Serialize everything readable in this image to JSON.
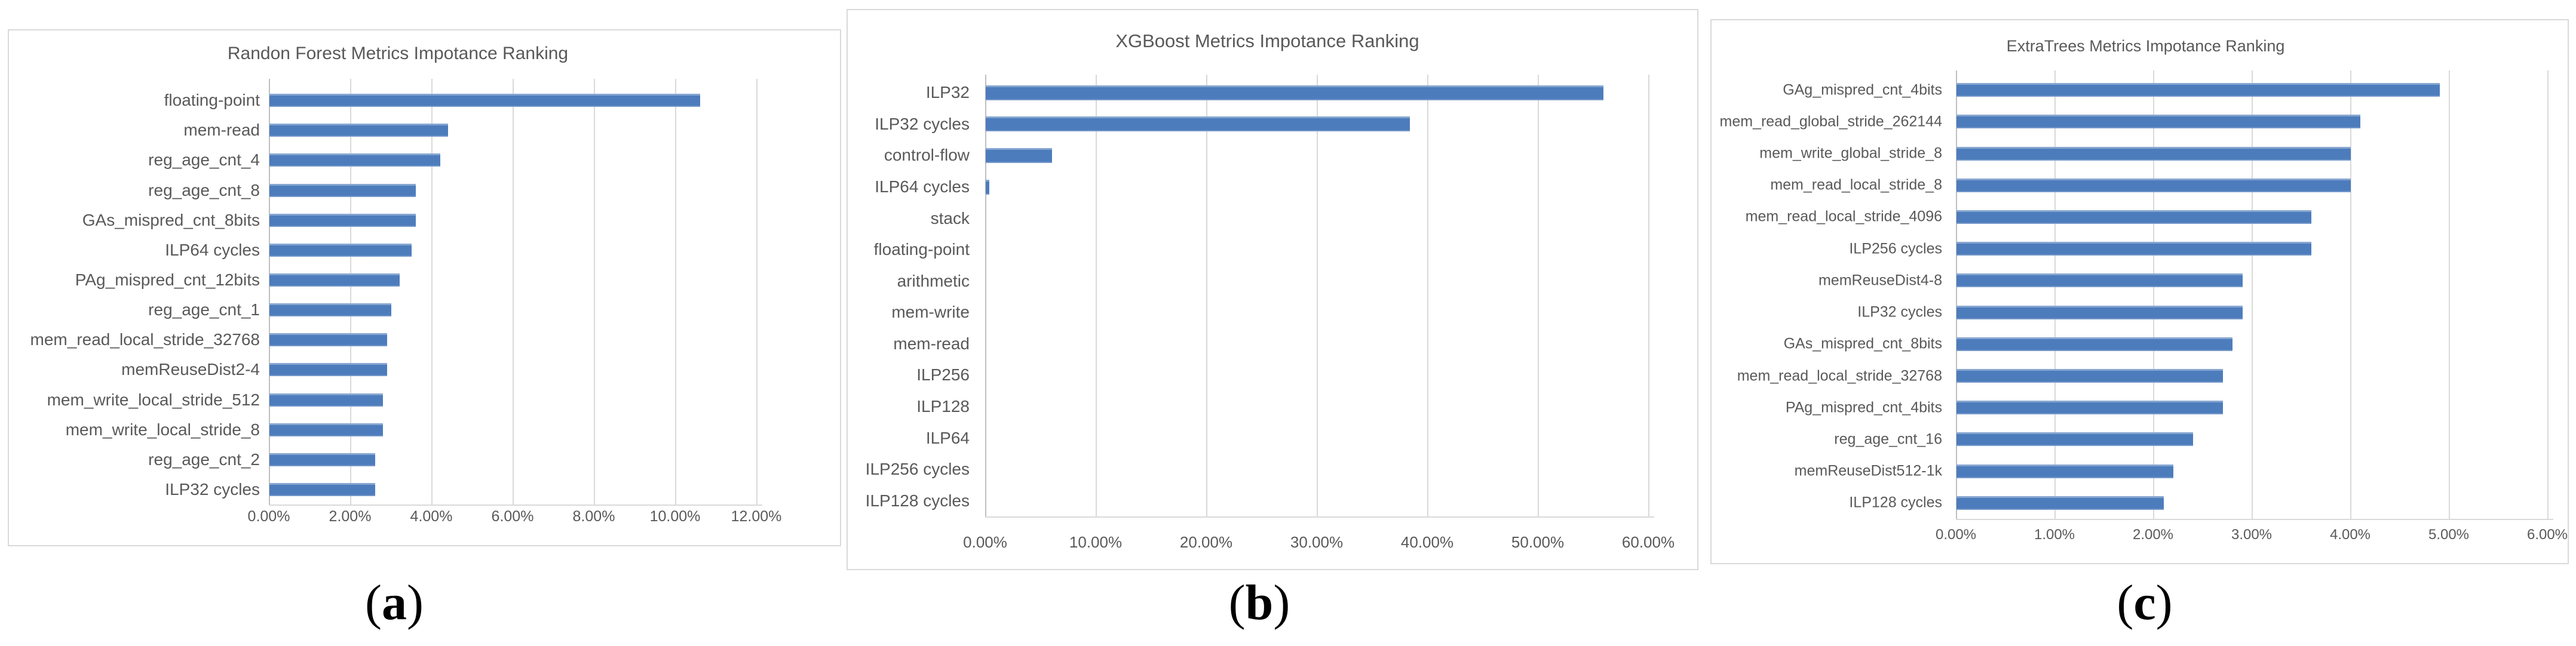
{
  "figure": {
    "captions": [
      {
        "open": "(",
        "letter": "a",
        "close": ")"
      },
      {
        "open": "(",
        "letter": "b",
        "close": ")"
      },
      {
        "open": "(",
        "letter": "c",
        "close": ")"
      }
    ],
    "colors": {
      "bar": "#4d7cbc",
      "gridline": "#d9d9d9",
      "zero_axis": "#bfbfbf",
      "text": "#595959",
      "panel_border": "#d9d9d9",
      "caption": "#000000"
    }
  },
  "chart_data": [
    {
      "type": "bar",
      "orientation": "horizontal",
      "title": "Randon Forest Metrics Impotance Ranking",
      "unit": "%",
      "xlim": [
        0,
        12
      ],
      "xtick_step": 2,
      "xtick_labels": [
        "0.00%",
        "2.00%",
        "4.00%",
        "6.00%",
        "8.00%",
        "10.00%",
        "12.00%"
      ],
      "grid": true,
      "legend": "none",
      "categories": [
        "floating-point",
        "mem-read",
        "reg_age_cnt_4",
        "reg_age_cnt_8",
        "GAs_mispred_cnt_8bits",
        "ILP64 cycles",
        "PAg_mispred_cnt_12bits",
        "reg_age_cnt_1",
        "mem_read_local_stride_32768",
        "memReuseDist2-4",
        "mem_write_local_stride_512",
        "mem_write_local_stride_8",
        "reg_age_cnt_2",
        "ILP32 cycles"
      ],
      "values": [
        10.6,
        4.4,
        4.2,
        3.6,
        3.6,
        3.5,
        3.2,
        3.0,
        2.9,
        2.9,
        2.8,
        2.8,
        2.6,
        2.6
      ]
    },
    {
      "type": "bar",
      "orientation": "horizontal",
      "title": "XGBoost Metrics Impotance Ranking",
      "unit": "%",
      "xlim": [
        0,
        60
      ],
      "xtick_step": 10,
      "xtick_labels": [
        "0.00%",
        "10.00%",
        "20.00%",
        "30.00%",
        "40.00%",
        "50.00%",
        "60.00%"
      ],
      "grid": true,
      "legend": "none",
      "categories": [
        "ILP32",
        "ILP32 cycles",
        "control-flow",
        "ILP64 cycles",
        "stack",
        "floating-point",
        "arithmetic",
        "mem-write",
        "mem-read",
        "ILP256",
        "ILP128",
        "ILP64",
        "ILP256 cycles",
        "ILP128 cycles"
      ],
      "values": [
        55.9,
        38.4,
        6.0,
        0.3,
        0,
        0,
        0,
        0,
        0,
        0,
        0,
        0,
        0,
        0
      ]
    },
    {
      "type": "bar",
      "orientation": "horizontal",
      "title": "ExtraTrees Metrics Impotance Ranking",
      "unit": "%",
      "xlim": [
        0,
        6
      ],
      "xtick_step": 1,
      "xtick_labels": [
        "0.00%",
        "1.00%",
        "2.00%",
        "3.00%",
        "4.00%",
        "5.00%",
        "6.00%"
      ],
      "grid": true,
      "legend": "none",
      "categories": [
        "GAg_mispred_cnt_4bits",
        "mem_read_global_stride_262144",
        "mem_write_global_stride_8",
        "mem_read_local_stride_8",
        "mem_read_local_stride_4096",
        "ILP256 cycles",
        "memReuseDist4-8",
        "ILP32 cycles",
        "GAs_mispred_cnt_8bits",
        "mem_read_local_stride_32768",
        "PAg_mispred_cnt_4bits",
        "reg_age_cnt_16",
        "memReuseDist512-1k",
        "ILP128 cycles"
      ],
      "values": [
        4.9,
        4.1,
        4.0,
        4.0,
        3.6,
        3.6,
        2.9,
        2.9,
        2.8,
        2.7,
        2.7,
        2.4,
        2.2,
        2.1
      ]
    }
  ]
}
